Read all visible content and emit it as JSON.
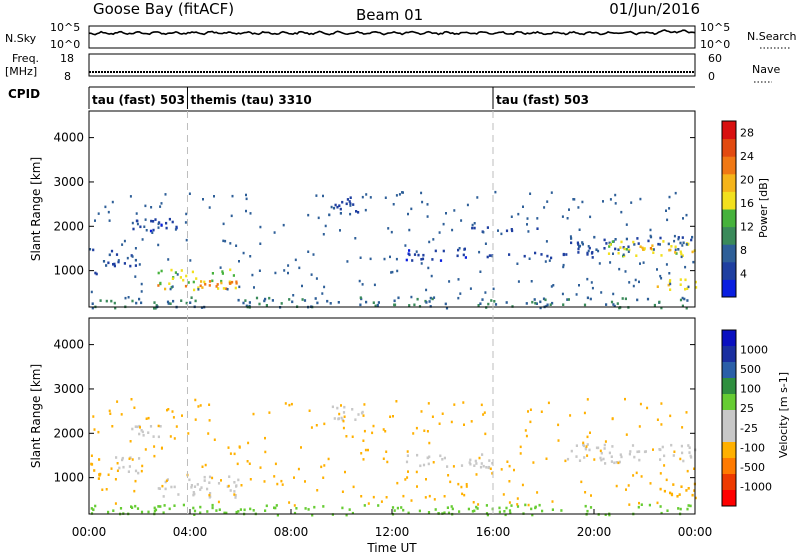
{
  "header": {
    "station": "Goose Bay (fitACF)",
    "beam": "Beam 01",
    "date": "01/Jun/2016"
  },
  "strip_panels": {
    "nsky_label": "N.Sky",
    "nsearch_label": "N.Search",
    "freq_label_1": "Freq.",
    "freq_label_2": "[MHz]",
    "nave_label": "Nave",
    "cpid_label": "CPID",
    "nsky_ticks": [
      "10^5",
      "10^0"
    ],
    "nsearch_ticks": [
      "10^5",
      "10^0"
    ],
    "freq_ticks": [
      "18",
      "8"
    ],
    "nave_ticks": [
      "60",
      "0"
    ]
  },
  "cpid_segments": [
    {
      "label": "tau (fast) 503",
      "start": 0,
      "end": 3.9
    },
    {
      "label": "themis (tau) 3310",
      "start": 3.9,
      "end": 16.0
    },
    {
      "label": "tau (fast) 503",
      "start": 16.0,
      "end": 24.0
    }
  ],
  "colors": {
    "power": [
      "#0a1fe0",
      "#1f3fa0",
      "#2e5f98",
      "#3a8a5a",
      "#46b23c",
      "#f2e01e",
      "#f5b41a",
      "#f07814",
      "#e24a10",
      "#d81010"
    ],
    "velocity": [
      "#ff0000",
      "#ee3a00",
      "#ff7a00",
      "#ffb000",
      "#c8c8c8",
      "#c8c8c8",
      "#66cc33",
      "#2f8f3f",
      "#2a5fa8",
      "#1a2fa0",
      "#0a10c0"
    ],
    "guide": "#bdbdbd"
  },
  "chart_data": [
    {
      "type": "heatmap",
      "name": "Power",
      "xlabel": "",
      "ylabel": "Slant Range [km]",
      "xlim": [
        0,
        24
      ],
      "ylim": [
        180,
        4600
      ],
      "x_ticks": [],
      "y_ticks": [
        1000,
        2000,
        3000,
        4000
      ],
      "colorbar": {
        "label": "Power [dB]",
        "ticks": [
          4,
          8,
          12,
          16,
          20,
          24,
          28
        ],
        "range": [
          0,
          30
        ]
      },
      "regions": [
        {
          "t0": 0.0,
          "t1": 0.8,
          "r0": 950,
          "r1": 1500,
          "v": 6
        },
        {
          "t0": 0.8,
          "t1": 2.0,
          "r0": 1100,
          "r1": 1500,
          "v": 5
        },
        {
          "t0": 1.6,
          "t1": 3.5,
          "r0": 1900,
          "r1": 2200,
          "v": 4
        },
        {
          "t0": 2.7,
          "t1": 5.9,
          "r0": 580,
          "r1": 1050,
          "v": 15
        },
        {
          "t0": 2.7,
          "t1": 5.9,
          "r0": 600,
          "r1": 800,
          "v": 22
        },
        {
          "t0": 9.6,
          "t1": 10.8,
          "r0": 2300,
          "r1": 2700,
          "v": 5
        },
        {
          "t0": 12.5,
          "t1": 16.0,
          "r0": 1250,
          "r1": 1550,
          "v": 4
        },
        {
          "t0": 15.0,
          "t1": 18.0,
          "r0": 1900,
          "r1": 2000,
          "v": 4
        },
        {
          "t0": 16.5,
          "t1": 20.0,
          "r0": 1300,
          "r1": 1450,
          "v": 5
        },
        {
          "t0": 18.9,
          "t1": 24.0,
          "r0": 1500,
          "r1": 1800,
          "v": 6
        },
        {
          "t0": 20.5,
          "t1": 24.0,
          "r0": 1350,
          "r1": 1700,
          "v": 16
        },
        {
          "t0": 21.5,
          "t1": 24.0,
          "r0": 1420,
          "r1": 1600,
          "v": 20
        },
        {
          "t0": 22.0,
          "t1": 24.0,
          "r0": 600,
          "r1": 900,
          "v": 17
        },
        {
          "t0": 0.0,
          "t1": 24.0,
          "r0": 180,
          "r1": 420,
          "v": 9
        }
      ]
    },
    {
      "type": "heatmap",
      "name": "Velocity",
      "xlabel": "Time UT",
      "ylabel": "Slant Range [km]",
      "xlim": [
        0,
        24
      ],
      "ylim": [
        180,
        4600
      ],
      "x_ticks": [
        "00:00",
        "04:00",
        "08:00",
        "12:00",
        "16:00",
        "20:00",
        "00:00"
      ],
      "y_ticks": [
        1000,
        2000,
        3000,
        4000
      ],
      "colorbar": {
        "label": "Velocity [m s-1]",
        "ticks": [
          "1000",
          "500",
          "100",
          "25",
          "-25",
          "-100",
          "-500",
          "-1000"
        ]
      },
      "regions": [
        {
          "t0": 0.0,
          "t1": 0.6,
          "r0": 950,
          "r1": 1500,
          "v": -150
        },
        {
          "t0": 0.6,
          "t1": 2.0,
          "r0": 1100,
          "r1": 1500,
          "v": 0
        },
        {
          "t0": 1.6,
          "t1": 3.5,
          "r0": 1900,
          "r1": 2200,
          "v": 0
        },
        {
          "t0": 2.7,
          "t1": 5.9,
          "r0": 580,
          "r1": 1050,
          "v": 0
        },
        {
          "t0": 9.6,
          "t1": 10.8,
          "r0": 2300,
          "r1": 2700,
          "v": 0
        },
        {
          "t0": 12.5,
          "t1": 16.0,
          "r0": 1250,
          "r1": 1550,
          "v": 0
        },
        {
          "t0": 18.9,
          "t1": 24.0,
          "r0": 1350,
          "r1": 1800,
          "v": 0
        },
        {
          "t0": 22.3,
          "t1": 24.0,
          "r0": 600,
          "r1": 900,
          "v": -250
        },
        {
          "t0": 0.0,
          "t1": 24.0,
          "r0": 180,
          "r1": 420,
          "v": 60
        }
      ]
    }
  ]
}
